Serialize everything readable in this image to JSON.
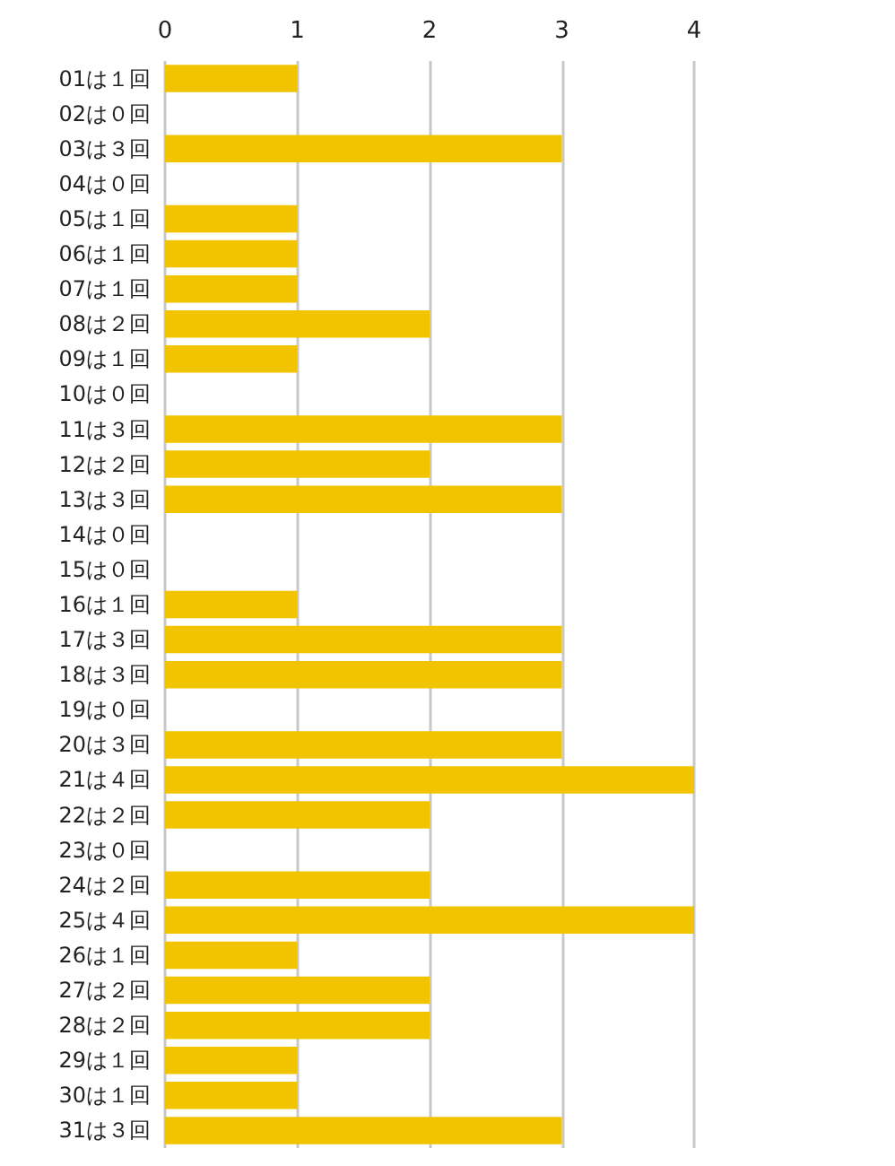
{
  "chart_data": {
    "type": "bar",
    "orientation": "horizontal",
    "categories": [
      "01は１回",
      "02は０回",
      "03は３回",
      "04は０回",
      "05は１回",
      "06は１回",
      "07は１回",
      "08は２回",
      "09は１回",
      "10は０回",
      "11は３回",
      "12は２回",
      "13は３回",
      "14は０回",
      "15は０回",
      "16は１回",
      "17は３回",
      "18は３回",
      "19は０回",
      "20は３回",
      "21は４回",
      "22は２回",
      "23は０回",
      "24は２回",
      "25は４回",
      "26は１回",
      "27は２回",
      "28は２回",
      "29は１回",
      "30は１回",
      "31は３回"
    ],
    "values": [
      1,
      0,
      3,
      0,
      1,
      1,
      1,
      2,
      1,
      0,
      3,
      2,
      3,
      0,
      0,
      1,
      3,
      3,
      0,
      3,
      4,
      2,
      0,
      2,
      4,
      1,
      2,
      2,
      1,
      1,
      3
    ],
    "color": "#f2c400",
    "xlim": [
      0,
      4
    ],
    "xticks": [
      0,
      1,
      2,
      3,
      4
    ],
    "grid": "x"
  }
}
